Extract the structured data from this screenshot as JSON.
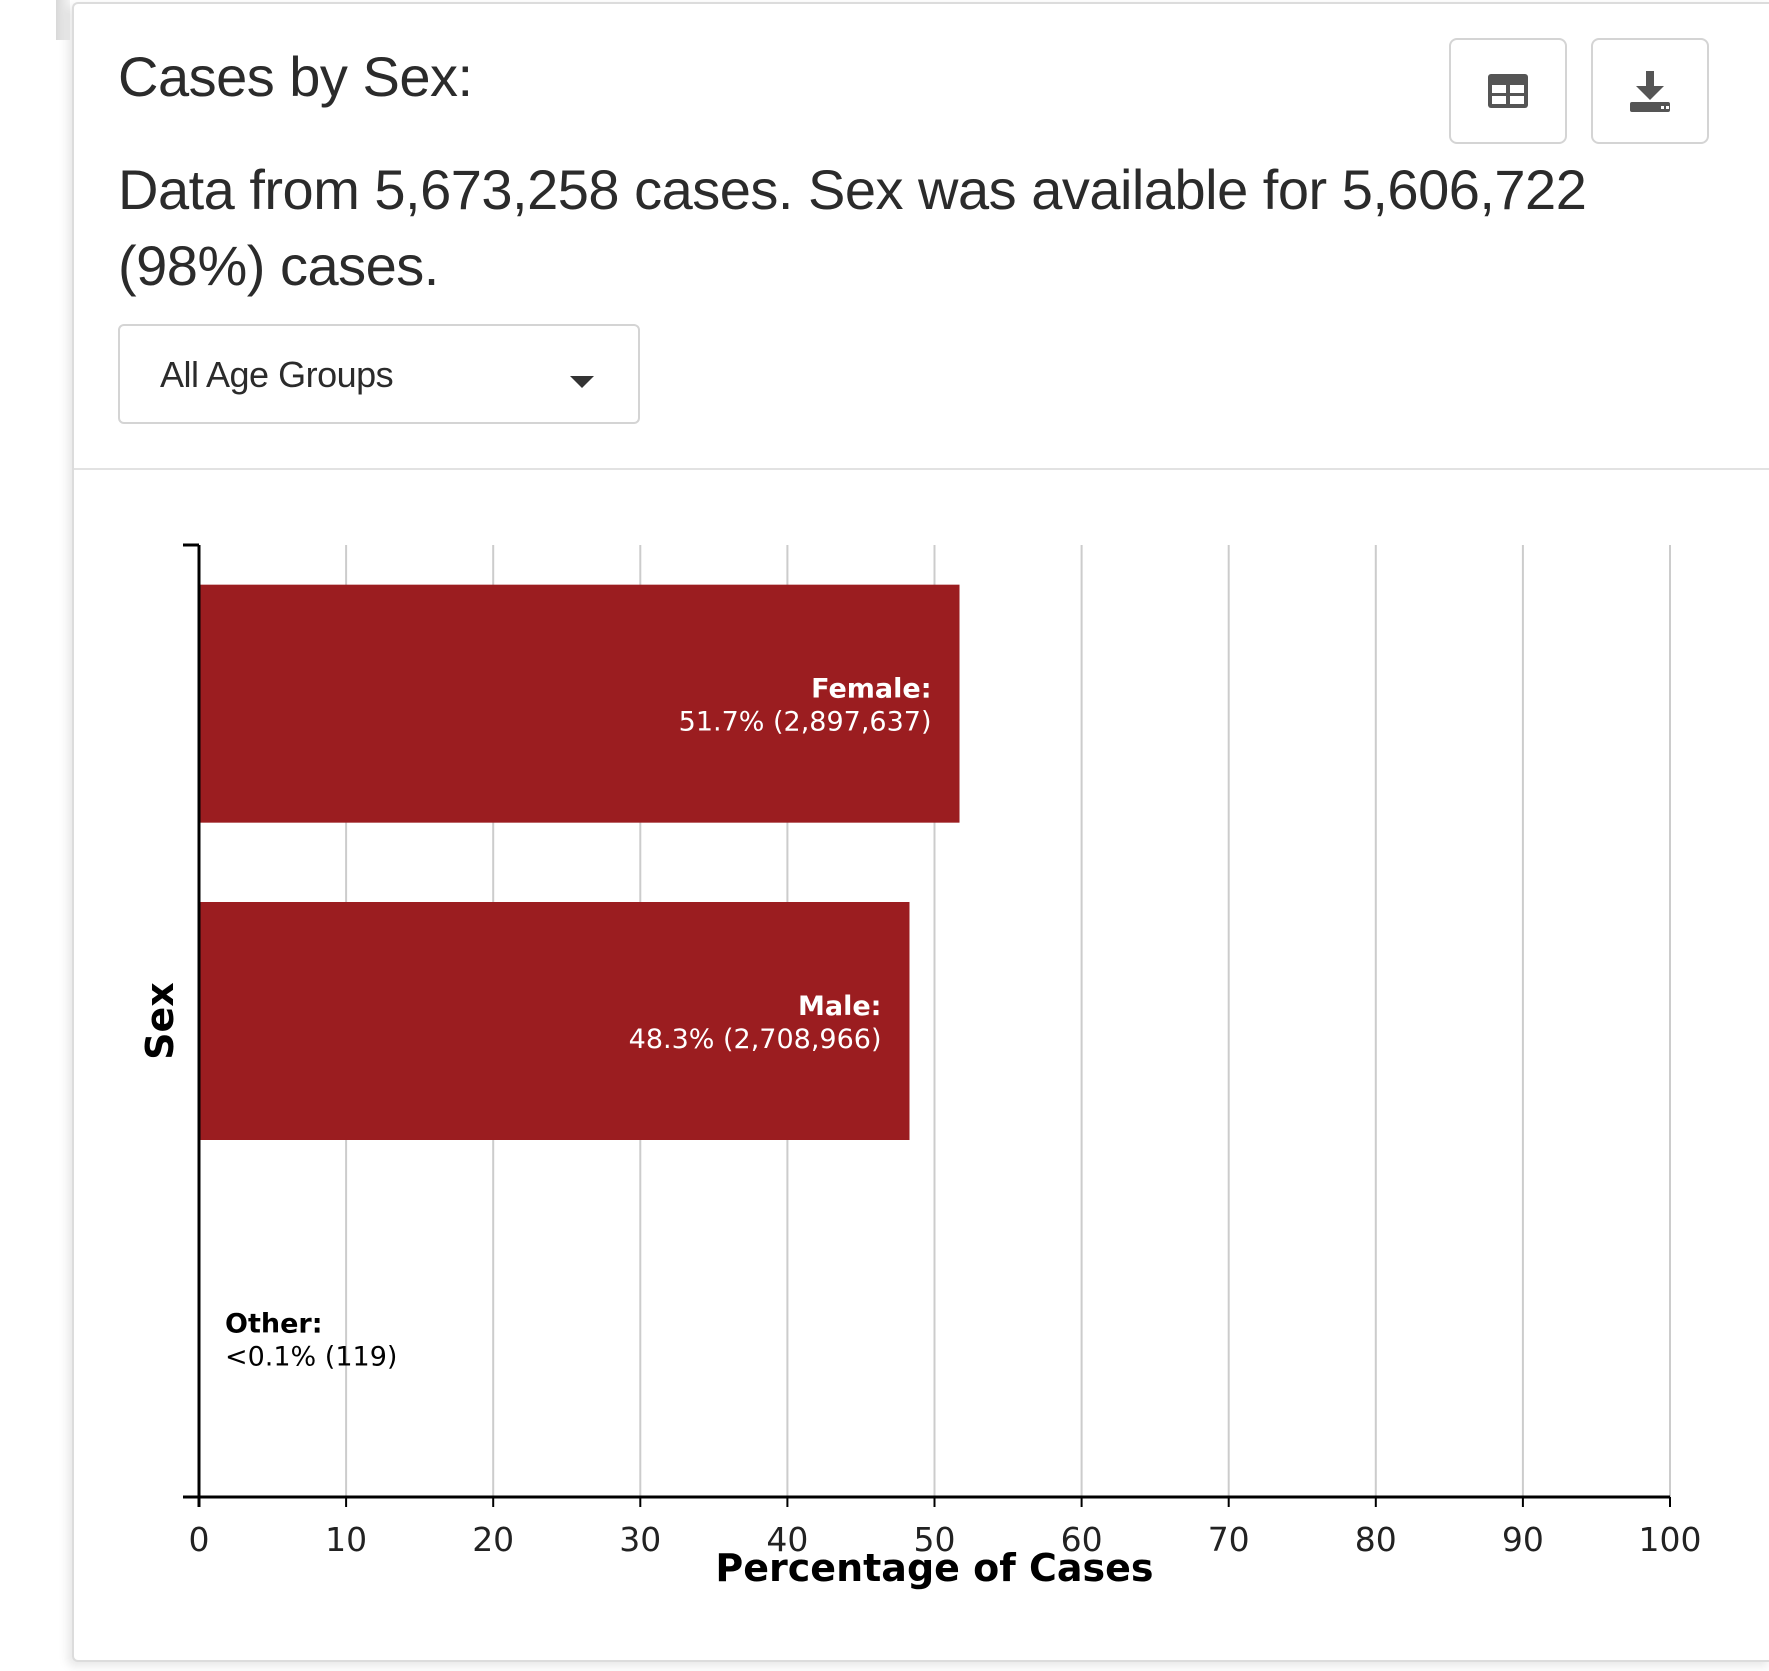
{
  "header": {
    "title": "Cases by Sex:",
    "subtitle": "Data from 5,673,258 cases. Sex was available for 5,606,722 (98%) cases.",
    "table_button_icon": "table-icon",
    "download_button_icon": "download-icon"
  },
  "filter": {
    "selected": "All Age Groups",
    "caret_icon": "caret-down-icon"
  },
  "colors": {
    "bar": "#9b1d20",
    "grid": "#cccccc",
    "axis": "#000000",
    "label_on_bar": "#ffffff",
    "label_off_bar": "#000000"
  },
  "chart_data": {
    "type": "bar",
    "orientation": "horizontal",
    "categories": [
      "Female",
      "Male",
      "Other"
    ],
    "values": [
      51.7,
      48.3,
      0.002
    ],
    "counts": [
      2897637,
      2708966,
      119
    ],
    "label_names": [
      "Female:",
      "Male:",
      "Other:"
    ],
    "label_values": [
      "51.7% (2,897,637)",
      "48.3% (2,708,966)",
      "<0.1% (119)"
    ],
    "xlabel": "Percentage of Cases",
    "ylabel": "Sex",
    "xlim": [
      0,
      100
    ],
    "xticks": [
      0,
      10,
      20,
      30,
      40,
      50,
      60,
      70,
      80,
      90,
      100
    ],
    "grid": true,
    "legend": "none"
  }
}
